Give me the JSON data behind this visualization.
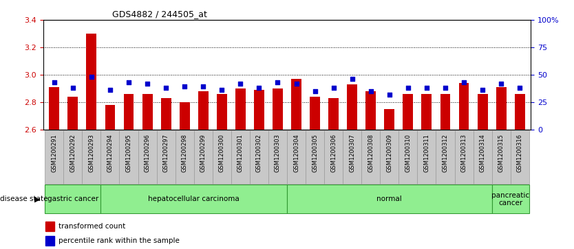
{
  "title": "GDS4882 / 244505_at",
  "samples": [
    "GSM1200291",
    "GSM1200292",
    "GSM1200293",
    "GSM1200294",
    "GSM1200295",
    "GSM1200296",
    "GSM1200297",
    "GSM1200298",
    "GSM1200299",
    "GSM1200300",
    "GSM1200301",
    "GSM1200302",
    "GSM1200303",
    "GSM1200304",
    "GSM1200305",
    "GSM1200306",
    "GSM1200307",
    "GSM1200308",
    "GSM1200309",
    "GSM1200310",
    "GSM1200311",
    "GSM1200312",
    "GSM1200313",
    "GSM1200314",
    "GSM1200315",
    "GSM1200316"
  ],
  "transformed_count": [
    2.91,
    2.84,
    3.3,
    2.78,
    2.86,
    2.86,
    2.83,
    2.8,
    2.88,
    2.86,
    2.9,
    2.89,
    2.9,
    2.97,
    2.84,
    2.83,
    2.93,
    2.88,
    2.75,
    2.86,
    2.86,
    2.86,
    2.94,
    2.86,
    2.91,
    2.86
  ],
  "percentile_rank": [
    43,
    38,
    48,
    36,
    43,
    42,
    38,
    39,
    39,
    36,
    42,
    38,
    43,
    42,
    35,
    38,
    46,
    35,
    32,
    38,
    38,
    38,
    43,
    36,
    42,
    38
  ],
  "ylim_left": [
    2.6,
    3.4
  ],
  "ylim_right": [
    0,
    100
  ],
  "bar_color": "#CC0000",
  "dot_color": "#0000CC",
  "groups": [
    {
      "label": "gastric cancer",
      "start": 0,
      "end": 3
    },
    {
      "label": "hepatocellular carcinoma",
      "start": 3,
      "end": 13
    },
    {
      "label": "normal",
      "start": 13,
      "end": 24
    },
    {
      "label": "pancreatic\ncancer",
      "start": 24,
      "end": 26
    }
  ],
  "group_boundaries": [
    0,
    3,
    13,
    24,
    26
  ],
  "group_color": "#90EE90",
  "group_border_color": "#339933",
  "tick_bg_color": "#C8C8C8",
  "tick_border_color": "#999999",
  "plot_bg_color": "#FFFFFF",
  "yticks_left": [
    2.6,
    2.8,
    3.0,
    3.2,
    3.4
  ],
  "yticks_right": [
    0,
    25,
    50,
    75,
    100
  ],
  "left_color": "#CC0000",
  "right_color": "#0000CC"
}
